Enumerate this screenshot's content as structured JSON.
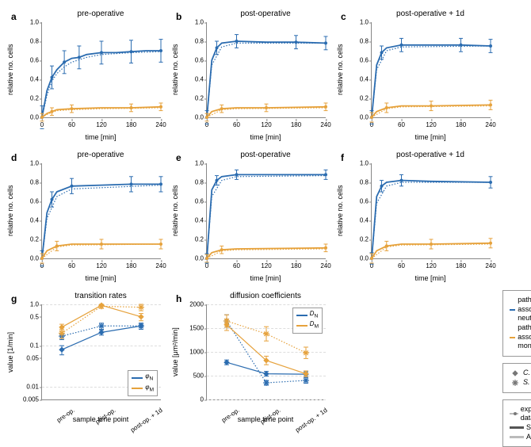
{
  "colors": {
    "blue": "#2b6cb0",
    "orange": "#e6a23c",
    "gray": "#777",
    "grid": "#ddd",
    "axis": "#888"
  },
  "series_labels": {
    "blue": "pathogens associated to neutrophils",
    "orange": "pathogens associated to monocytes"
  },
  "marker_labels": {
    "diamond": "C. albicans",
    "star": "S. aureus"
  },
  "model_labels": {
    "exp": "experimental data",
    "sbm": "SBM data",
    "abm": "ABM data"
  },
  "timeseries_panels": [
    {
      "id": "a",
      "title": "pre-operative",
      "ylabel": "relative no. cells",
      "xlabel": "time [min]",
      "xlim": [
        0,
        240
      ],
      "ylim": [
        0,
        1
      ],
      "xticks": [
        0,
        60,
        120,
        180,
        240
      ],
      "yticks": [
        0,
        0.2,
        0.4,
        0.6,
        0.8,
        1.0
      ],
      "series": [
        {
          "color": "blue",
          "style": "solid",
          "data": [
            [
              0,
              0
            ],
            [
              10,
              0.28
            ],
            [
              20,
              0.42
            ],
            [
              30,
              0.5
            ],
            [
              45,
              0.58
            ],
            [
              60,
              0.62
            ],
            [
              75,
              0.63
            ],
            [
              90,
              0.66
            ],
            [
              120,
              0.68
            ],
            [
              150,
              0.68
            ],
            [
              180,
              0.69
            ],
            [
              210,
              0.7
            ],
            [
              240,
              0.7
            ]
          ],
          "err": 0.12
        },
        {
          "color": "blue",
          "style": "dotted",
          "data": [
            [
              0,
              0
            ],
            [
              10,
              0.23
            ],
            [
              20,
              0.38
            ],
            [
              30,
              0.46
            ],
            [
              45,
              0.53
            ],
            [
              60,
              0.58
            ],
            [
              90,
              0.63
            ],
            [
              120,
              0.66
            ],
            [
              180,
              0.68
            ],
            [
              240,
              0.69
            ]
          ],
          "err": 0
        },
        {
          "color": "orange",
          "style": "solid",
          "data": [
            [
              0,
              0
            ],
            [
              10,
              0.04
            ],
            [
              20,
              0.06
            ],
            [
              30,
              0.08
            ],
            [
              60,
              0.09
            ],
            [
              120,
              0.1
            ],
            [
              180,
              0.1
            ],
            [
              240,
              0.11
            ]
          ],
          "err": 0.04
        },
        {
          "color": "orange",
          "style": "dotted",
          "data": [
            [
              0,
              0
            ],
            [
              10,
              0.03
            ],
            [
              30,
              0.07
            ],
            [
              60,
              0.08
            ],
            [
              120,
              0.09
            ],
            [
              240,
              0.1
            ]
          ],
          "err": 0
        }
      ]
    },
    {
      "id": "b",
      "title": "post-operative",
      "ylabel": "relative no. cells",
      "xlabel": "time [min]",
      "xlim": [
        0,
        240
      ],
      "ylim": [
        0,
        1
      ],
      "xticks": [
        0,
        60,
        120,
        180,
        240
      ],
      "yticks": [
        0,
        0.2,
        0.4,
        0.6,
        0.8,
        1.0
      ],
      "series": [
        {
          "color": "blue",
          "style": "solid",
          "data": [
            [
              0,
              0
            ],
            [
              10,
              0.6
            ],
            [
              20,
              0.73
            ],
            [
              30,
              0.78
            ],
            [
              60,
              0.8
            ],
            [
              120,
              0.79
            ],
            [
              180,
              0.79
            ],
            [
              240,
              0.78
            ]
          ],
          "err": 0.07
        },
        {
          "color": "blue",
          "style": "dotted",
          "data": [
            [
              0,
              0
            ],
            [
              10,
              0.55
            ],
            [
              30,
              0.74
            ],
            [
              60,
              0.78
            ],
            [
              240,
              0.78
            ]
          ],
          "err": 0
        },
        {
          "color": "orange",
          "style": "solid",
          "data": [
            [
              0,
              0
            ],
            [
              10,
              0.06
            ],
            [
              30,
              0.09
            ],
            [
              60,
              0.1
            ],
            [
              120,
              0.1
            ],
            [
              240,
              0.11
            ]
          ],
          "err": 0.04
        },
        {
          "color": "orange",
          "style": "dotted",
          "data": [
            [
              0,
              0
            ],
            [
              30,
              0.08
            ],
            [
              60,
              0.09
            ],
            [
              240,
              0.1
            ]
          ],
          "err": 0
        }
      ]
    },
    {
      "id": "c",
      "title": "post-operative + 1d",
      "ylabel": "relative no. cells",
      "xlabel": "time [min]",
      "xlim": [
        0,
        240
      ],
      "ylim": [
        0,
        1
      ],
      "xticks": [
        0,
        60,
        120,
        180,
        240
      ],
      "yticks": [
        0,
        0.2,
        0.4,
        0.6,
        0.8,
        1.0
      ],
      "series": [
        {
          "color": "blue",
          "style": "solid",
          "data": [
            [
              0,
              0
            ],
            [
              10,
              0.55
            ],
            [
              20,
              0.68
            ],
            [
              30,
              0.73
            ],
            [
              60,
              0.76
            ],
            [
              120,
              0.76
            ],
            [
              180,
              0.76
            ],
            [
              240,
              0.75
            ]
          ],
          "err": 0.07
        },
        {
          "color": "blue",
          "style": "dotted",
          "data": [
            [
              0,
              0
            ],
            [
              10,
              0.5
            ],
            [
              30,
              0.7
            ],
            [
              60,
              0.74
            ],
            [
              240,
              0.75
            ]
          ],
          "err": 0
        },
        {
          "color": "orange",
          "style": "solid",
          "data": [
            [
              0,
              0
            ],
            [
              10,
              0.06
            ],
            [
              30,
              0.1
            ],
            [
              60,
              0.12
            ],
            [
              120,
              0.12
            ],
            [
              240,
              0.13
            ]
          ],
          "err": 0.05
        },
        {
          "color": "orange",
          "style": "dotted",
          "data": [
            [
              0,
              0
            ],
            [
              30,
              0.09
            ],
            [
              60,
              0.11
            ],
            [
              240,
              0.12
            ]
          ],
          "err": 0
        }
      ]
    },
    {
      "id": "d",
      "title": "pre-operative",
      "ylabel": "relative no. cells",
      "xlabel": "time [min]",
      "xlim": [
        0,
        240
      ],
      "ylim": [
        0,
        1
      ],
      "xticks": [
        0,
        60,
        120,
        180,
        240
      ],
      "yticks": [
        0,
        0.2,
        0.4,
        0.6,
        0.8,
        1.0
      ],
      "series": [
        {
          "color": "blue",
          "style": "solid",
          "data": [
            [
              0,
              0
            ],
            [
              10,
              0.48
            ],
            [
              20,
              0.62
            ],
            [
              30,
              0.7
            ],
            [
              60,
              0.76
            ],
            [
              120,
              0.77
            ],
            [
              180,
              0.78
            ],
            [
              240,
              0.78
            ]
          ],
          "err": 0.08
        },
        {
          "color": "blue",
          "style": "dotted",
          "data": [
            [
              0,
              0
            ],
            [
              10,
              0.42
            ],
            [
              30,
              0.65
            ],
            [
              60,
              0.73
            ],
            [
              240,
              0.77
            ]
          ],
          "err": 0
        },
        {
          "color": "orange",
          "style": "solid",
          "data": [
            [
              0,
              0
            ],
            [
              10,
              0.08
            ],
            [
              30,
              0.13
            ],
            [
              60,
              0.15
            ],
            [
              120,
              0.15
            ],
            [
              240,
              0.15
            ]
          ],
          "err": 0.05
        },
        {
          "color": "orange",
          "style": "dotted",
          "data": [
            [
              0,
              0
            ],
            [
              30,
              0.12
            ],
            [
              60,
              0.14
            ],
            [
              240,
              0.15
            ]
          ],
          "err": 0
        }
      ]
    },
    {
      "id": "e",
      "title": "post-operative",
      "ylabel": "relative no. cells",
      "xlabel": "time [min]",
      "xlim": [
        0,
        240
      ],
      "ylim": [
        0,
        1
      ],
      "xticks": [
        0,
        60,
        120,
        180,
        240
      ],
      "yticks": [
        0,
        0.2,
        0.4,
        0.6,
        0.8,
        1.0
      ],
      "series": [
        {
          "color": "blue",
          "style": "solid",
          "data": [
            [
              0,
              0
            ],
            [
              10,
              0.72
            ],
            [
              20,
              0.82
            ],
            [
              30,
              0.86
            ],
            [
              60,
              0.88
            ],
            [
              120,
              0.88
            ],
            [
              240,
              0.88
            ]
          ],
          "err": 0.05
        },
        {
          "color": "blue",
          "style": "dotted",
          "data": [
            [
              0,
              0
            ],
            [
              10,
              0.65
            ],
            [
              30,
              0.82
            ],
            [
              60,
              0.86
            ],
            [
              240,
              0.87
            ]
          ],
          "err": 0
        },
        {
          "color": "orange",
          "style": "solid",
          "data": [
            [
              0,
              0
            ],
            [
              10,
              0.06
            ],
            [
              30,
              0.09
            ],
            [
              60,
              0.1
            ],
            [
              240,
              0.11
            ]
          ],
          "err": 0.04
        },
        {
          "color": "orange",
          "style": "dotted",
          "data": [
            [
              0,
              0
            ],
            [
              30,
              0.08
            ],
            [
              60,
              0.09
            ],
            [
              240,
              0.1
            ]
          ],
          "err": 0
        }
      ]
    },
    {
      "id": "f",
      "title": "post-operative + 1d",
      "ylabel": "relative no. cells",
      "xlabel": "time [min]",
      "xlim": [
        0,
        240
      ],
      "ylim": [
        0,
        1
      ],
      "xticks": [
        0,
        60,
        120,
        180,
        240
      ],
      "yticks": [
        0,
        0.2,
        0.4,
        0.6,
        0.8,
        1.0
      ],
      "series": [
        {
          "color": "blue",
          "style": "solid",
          "data": [
            [
              0,
              0
            ],
            [
              10,
              0.65
            ],
            [
              20,
              0.76
            ],
            [
              30,
              0.8
            ],
            [
              60,
              0.82
            ],
            [
              120,
              0.81
            ],
            [
              240,
              0.8
            ]
          ],
          "err": 0.06
        },
        {
          "color": "blue",
          "style": "dotted",
          "data": [
            [
              0,
              0
            ],
            [
              10,
              0.58
            ],
            [
              30,
              0.76
            ],
            [
              60,
              0.8
            ],
            [
              240,
              0.8
            ]
          ],
          "err": 0
        },
        {
          "color": "orange",
          "style": "solid",
          "data": [
            [
              0,
              0
            ],
            [
              10,
              0.08
            ],
            [
              30,
              0.13
            ],
            [
              60,
              0.15
            ],
            [
              120,
              0.15
            ],
            [
              240,
              0.16
            ]
          ],
          "err": 0.05
        },
        {
          "color": "orange",
          "style": "dotted",
          "data": [
            [
              0,
              0
            ],
            [
              30,
              0.12
            ],
            [
              60,
              0.14
            ],
            [
              240,
              0.15
            ]
          ],
          "err": 0
        }
      ]
    }
  ],
  "panel_g": {
    "id": "g",
    "title": "transition rates",
    "ylabel": "value [1/min]",
    "xlabel": "sample time point",
    "xcats": [
      "pre-op.",
      "post-op.",
      "post-op. + 1d"
    ],
    "yscale": "log",
    "ylim": [
      0.005,
      1.0
    ],
    "yticks": [
      0.01,
      0.1,
      1.0
    ],
    "yticks_minor": [
      0.005,
      0.05,
      0.5
    ],
    "series": [
      {
        "name": "phiN_diamond",
        "color": "blue",
        "marker": "diamond",
        "style": "solid",
        "data": [
          0.08,
          0.21,
          0.3
        ],
        "err": [
          0.02,
          0.03,
          0.05
        ]
      },
      {
        "name": "phiN_star",
        "color": "blue",
        "marker": "star",
        "style": "dotted",
        "data": [
          0.17,
          0.3,
          0.3
        ],
        "err": [
          0.03,
          0.05,
          0.05
        ]
      },
      {
        "name": "phiM_diamond",
        "color": "orange",
        "marker": "diamond",
        "style": "solid",
        "data": [
          0.28,
          0.95,
          0.5
        ],
        "err": [
          0.05,
          0.05,
          0.1
        ]
      },
      {
        "name": "phiM_star",
        "color": "orange",
        "marker": "star",
        "style": "dotted",
        "data": [
          0.2,
          0.9,
          0.85
        ],
        "err": [
          0.05,
          0.1,
          0.15
        ]
      }
    ],
    "legend": {
      "items": [
        {
          "color": "blue",
          "label": "φ_N"
        },
        {
          "color": "orange",
          "label": "φ_M"
        }
      ],
      "pos": "bottom-right"
    }
  },
  "panel_h": {
    "id": "h",
    "title": "diffusion coefficients",
    "ylabel": "value [μm²/min]",
    "xlabel": "sample time point",
    "xcats": [
      "pre-op.",
      "post-op.",
      "post-op. + 1d"
    ],
    "ylim": [
      0,
      2000
    ],
    "yticks": [
      0,
      500,
      1000,
      1500,
      2000
    ],
    "series": [
      {
        "name": "DN_diamond",
        "color": "blue",
        "marker": "diamond",
        "style": "solid",
        "data": [
          780,
          540,
          530
        ],
        "err": [
          50,
          50,
          50
        ]
      },
      {
        "name": "DN_star",
        "color": "blue",
        "marker": "star",
        "style": "dotted",
        "data": [
          1650,
          350,
          400
        ],
        "err": [
          130,
          50,
          60
        ]
      },
      {
        "name": "DM_diamond",
        "color": "orange",
        "marker": "diamond",
        "style": "solid",
        "data": [
          1570,
          820,
          540
        ],
        "err": [
          120,
          90,
          60
        ]
      },
      {
        "name": "DM_star",
        "color": "orange",
        "marker": "star",
        "style": "dotted",
        "data": [
          1650,
          1380,
          980
        ],
        "err": [
          130,
          150,
          120
        ]
      }
    ],
    "legend": {
      "items": [
        {
          "color": "blue",
          "label": "D_N"
        },
        {
          "color": "orange",
          "label": "D_M"
        }
      ],
      "pos": "top-right"
    }
  }
}
